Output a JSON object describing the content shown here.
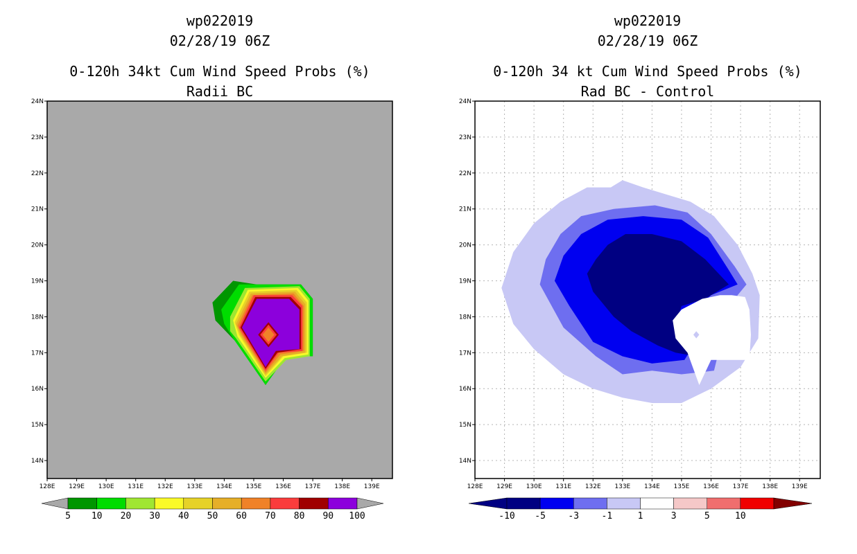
{
  "left_panel": {
    "title_line1": "wp022019",
    "title_line2": "02/28/19 06Z",
    "title_line3": "0-120h 34kt Cum Wind Speed Probs (%)",
    "title_line4": "Radii BC",
    "background_color": "#a9a9a9"
  },
  "right_panel": {
    "title_line1": "wp022019",
    "title_line2": "02/28/19 06Z",
    "title_line3": "0-120h 34 kt Cum Wind Speed Probs (%)",
    "title_line4": "Rad BC - Control"
  },
  "chart_data": [
    {
      "type": "contour-map",
      "title": "0-120h 34kt Cum Wind Speed Probs (%)",
      "subtitle": "Radii BC",
      "xlim": [
        128,
        139.7
      ],
      "ylim": [
        13.5,
        24
      ],
      "x_ticks": [
        128,
        129,
        130,
        131,
        132,
        133,
        134,
        135,
        136,
        137,
        138,
        139
      ],
      "x_tick_labels": [
        "128E",
        "129E",
        "130E",
        "131E",
        "132E",
        "133E",
        "134E",
        "135E",
        "136E",
        "137E",
        "138E",
        "139E"
      ],
      "y_ticks": [
        14,
        15,
        16,
        17,
        18,
        19,
        20,
        21,
        22,
        23,
        24
      ],
      "y_tick_labels": [
        "14N",
        "15N",
        "16N",
        "17N",
        "18N",
        "19N",
        "20N",
        "21N",
        "22N",
        "23N",
        "24N"
      ],
      "grid": false,
      "colorbar": {
        "labels": [
          "5",
          "10",
          "20",
          "30",
          "40",
          "50",
          "60",
          "70",
          "80",
          "90",
          "100"
        ],
        "colors": [
          "#009600",
          "#00dc00",
          "#a0e632",
          "#fafa28",
          "#e6d228",
          "#e6af28",
          "#f08228",
          "#fa3c3c",
          "#a00000",
          "#8c00dc"
        ],
        "end_color": "#a9a9a9"
      },
      "contours": [
        {
          "level": "5-10",
          "color": "#009600",
          "lonlat": [
            [
              133.6,
              18.4
            ],
            [
              134.3,
              19.0
            ],
            [
              135.1,
              18.9
            ],
            [
              136.6,
              18.9
            ],
            [
              137,
              18.5
            ],
            [
              137,
              16.9
            ],
            [
              136.1,
              16.9
            ],
            [
              135.4,
              16.1
            ],
            [
              134.4,
              17.3
            ],
            [
              133.7,
              17.9
            ]
          ]
        },
        {
          "level": "10-20",
          "color": "#00dc00",
          "lonlat": [
            [
              133.9,
              18.2
            ],
            [
              134.5,
              18.9
            ],
            [
              136.6,
              18.9
            ],
            [
              137,
              18.5
            ],
            [
              137,
              16.9
            ],
            [
              136.1,
              16.9
            ],
            [
              135.4,
              16.1
            ],
            [
              134.3,
              17.4
            ],
            [
              134.0,
              17.8
            ]
          ]
        },
        {
          "level": "20-30",
          "color": "#a0e632",
          "lonlat": [
            [
              134.2,
              18.0
            ],
            [
              134.7,
              18.8
            ],
            [
              136.55,
              18.85
            ],
            [
              136.9,
              18.5
            ],
            [
              136.9,
              16.9
            ],
            [
              136.1,
              16.8
            ],
            [
              135.4,
              16.2
            ],
            [
              134.4,
              17.4
            ],
            [
              134.2,
              17.6
            ]
          ]
        },
        {
          "level": "30-40",
          "color": "#fafa28",
          "lonlat": [
            [
              134.3,
              17.9
            ],
            [
              134.8,
              18.75
            ],
            [
              136.5,
              18.8
            ],
            [
              136.85,
              18.45
            ],
            [
              136.85,
              16.95
            ],
            [
              136.05,
              16.85
            ],
            [
              135.4,
              16.3
            ],
            [
              134.45,
              17.45
            ]
          ]
        },
        {
          "level": "40-50",
          "color": "#e6d228",
          "lonlat": [
            [
              134.35,
              17.85
            ],
            [
              134.85,
              18.7
            ],
            [
              136.45,
              18.75
            ],
            [
              136.8,
              18.4
            ],
            [
              136.8,
              17.0
            ],
            [
              136.0,
              16.9
            ],
            [
              135.4,
              16.35
            ],
            [
              134.5,
              17.5
            ]
          ]
        },
        {
          "level": "50-60",
          "color": "#e6af28",
          "lonlat": [
            [
              134.4,
              17.8
            ],
            [
              134.9,
              18.65
            ],
            [
              136.4,
              18.7
            ],
            [
              136.75,
              18.35
            ],
            [
              136.75,
              17.0
            ],
            [
              135.95,
              16.9
            ],
            [
              135.4,
              16.4
            ],
            [
              134.55,
              17.5
            ]
          ]
        },
        {
          "level": "60-70",
          "color": "#f08228",
          "lonlat": [
            [
              134.45,
              17.75
            ],
            [
              134.95,
              18.6
            ],
            [
              136.35,
              18.65
            ],
            [
              136.7,
              18.3
            ],
            [
              136.7,
              17.05
            ],
            [
              135.9,
              16.95
            ],
            [
              135.4,
              16.45
            ],
            [
              134.6,
              17.5
            ]
          ]
        },
        {
          "level": "70-80",
          "color": "#fa3c3c",
          "lonlat": [
            [
              134.5,
              17.7
            ],
            [
              135.0,
              18.6
            ],
            [
              136.3,
              18.6
            ],
            [
              136.65,
              18.3
            ],
            [
              136.65,
              17.05
            ],
            [
              135.85,
              17.0
            ],
            [
              135.4,
              16.5
            ],
            [
              134.65,
              17.5
            ]
          ]
        },
        {
          "level": "80-90",
          "color": "#a00000",
          "lonlat": [
            [
              134.55,
              17.7
            ],
            [
              135.05,
              18.55
            ],
            [
              136.25,
              18.55
            ],
            [
              136.6,
              18.25
            ],
            [
              136.6,
              17.1
            ],
            [
              135.8,
              17.0
            ],
            [
              135.4,
              16.55
            ],
            [
              134.7,
              17.5
            ]
          ]
        },
        {
          "level": "90-100",
          "color": "#8c00dc",
          "lonlat": [
            [
              134.6,
              17.7
            ],
            [
              135.1,
              18.5
            ],
            [
              136.2,
              18.5
            ],
            [
              136.55,
              18.2
            ],
            [
              136.55,
              17.1
            ],
            [
              135.75,
              17.05
            ],
            [
              135.4,
              16.6
            ],
            [
              134.75,
              17.5
            ]
          ]
        },
        {
          "level": "center-80",
          "color": "#a00000",
          "lonlat": [
            [
              135.5,
              17.85
            ],
            [
              135.85,
              17.5
            ],
            [
              135.5,
              17.15
            ],
            [
              135.15,
              17.5
            ]
          ]
        },
        {
          "level": "center-70",
          "color": "#fa3c3c",
          "lonlat": [
            [
              135.5,
              17.78
            ],
            [
              135.78,
              17.5
            ],
            [
              135.5,
              17.22
            ],
            [
              135.22,
              17.5
            ]
          ]
        },
        {
          "level": "center-60",
          "color": "#f08228",
          "lonlat": [
            [
              135.5,
              17.7
            ],
            [
              135.7,
              17.5
            ],
            [
              135.5,
              17.3
            ],
            [
              135.3,
              17.5
            ]
          ]
        }
      ]
    },
    {
      "type": "contour-map",
      "title": "0-120h 34 kt Cum Wind Speed Probs (%)",
      "subtitle": "Rad BC - Control",
      "xlim": [
        128,
        139.7
      ],
      "ylim": [
        13.5,
        24
      ],
      "x_ticks": [
        128,
        129,
        130,
        131,
        132,
        133,
        134,
        135,
        136,
        137,
        138,
        139
      ],
      "x_tick_labels": [
        "128E",
        "129E",
        "130E",
        "131E",
        "132E",
        "133E",
        "134E",
        "135E",
        "136E",
        "137E",
        "138E",
        "139E"
      ],
      "y_ticks": [
        14,
        15,
        16,
        17,
        18,
        19,
        20,
        21,
        22,
        23,
        24
      ],
      "y_tick_labels": [
        "14N",
        "15N",
        "16N",
        "17N",
        "18N",
        "19N",
        "20N",
        "21N",
        "22N",
        "23N",
        "24N"
      ],
      "grid": true,
      "colorbar": {
        "labels": [
          "-10",
          "-5",
          "-3",
          "-1",
          "1",
          "3",
          "5",
          "10"
        ],
        "colors": [
          "#000082",
          "#0000f0",
          "#6e6ef0",
          "#c8c8f5",
          "#ffffff",
          "#f5c8c8",
          "#f06e6e",
          "#f00000"
        ],
        "low_end_color": "#000082",
        "high_end_color": "#820000"
      },
      "contours": [
        {
          "level": "-3 to -1",
          "color": "#c8c8f5",
          "lonlat": [
            [
              133.0,
              21.8
            ],
            [
              133.7,
              21.6
            ],
            [
              134.5,
              21.4
            ],
            [
              135.3,
              21.2
            ],
            [
              136.1,
              20.8
            ],
            [
              136.9,
              20.0
            ],
            [
              137.4,
              19.2
            ],
            [
              137.65,
              18.6
            ],
            [
              137.6,
              17.4
            ],
            [
              137.0,
              16.6
            ],
            [
              136.0,
              16.0
            ],
            [
              135.0,
              15.6
            ],
            [
              134.0,
              15.6
            ],
            [
              133.0,
              15.75
            ],
            [
              132.0,
              16.0
            ],
            [
              131.0,
              16.4
            ],
            [
              130.0,
              17.1
            ],
            [
              129.3,
              17.8
            ],
            [
              128.9,
              18.8
            ],
            [
              129.3,
              19.8
            ],
            [
              130.0,
              20.6
            ],
            [
              130.9,
              21.2
            ],
            [
              131.8,
              21.6
            ],
            [
              132.6,
              21.6
            ]
          ]
        },
        {
          "level": "-5 to -3",
          "color": "#6e6ef0",
          "lonlat": [
            [
              131.6,
              20.8
            ],
            [
              132.7,
              21.0
            ],
            [
              134.1,
              21.1
            ],
            [
              135.2,
              20.9
            ],
            [
              136.0,
              20.3
            ],
            [
              136.8,
              19.4
            ],
            [
              137.2,
              18.9
            ],
            [
              136.9,
              18.6
            ],
            [
              136.4,
              17.5
            ],
            [
              136.1,
              16.5
            ],
            [
              135.0,
              16.4
            ],
            [
              134.0,
              16.5
            ],
            [
              133.0,
              16.4
            ],
            [
              132.1,
              16.9
            ],
            [
              131.0,
              17.7
            ],
            [
              130.2,
              18.9
            ],
            [
              130.4,
              19.6
            ],
            [
              130.9,
              20.3
            ]
          ]
        },
        {
          "level": "-10 to -5",
          "color": "#0000f0",
          "lonlat": [
            [
              131.6,
              20.3
            ],
            [
              132.5,
              20.7
            ],
            [
              133.7,
              20.8
            ],
            [
              135.0,
              20.7
            ],
            [
              135.9,
              20.2
            ],
            [
              136.6,
              19.3
            ],
            [
              136.9,
              18.9
            ],
            [
              136.0,
              18.6
            ],
            [
              135.2,
              18.0
            ],
            [
              135.4,
              17.2
            ],
            [
              135.1,
              16.8
            ],
            [
              134.0,
              16.7
            ],
            [
              133.0,
              16.9
            ],
            [
              132.0,
              17.3
            ],
            [
              131.2,
              18.3
            ],
            [
              130.7,
              19.0
            ],
            [
              131.0,
              19.7
            ]
          ]
        },
        {
          "level": "< -10",
          "color": "#000082",
          "lonlat": [
            [
              132.5,
              20.0
            ],
            [
              133.1,
              20.3
            ],
            [
              134.0,
              20.3
            ],
            [
              135.0,
              20.1
            ],
            [
              135.8,
              19.6
            ],
            [
              136.6,
              18.9
            ],
            [
              135.8,
              18.5
            ],
            [
              135.0,
              18.3
            ],
            [
              134.8,
              17.8
            ],
            [
              135.1,
              17.1
            ],
            [
              135.5,
              16.9
            ],
            [
              134.8,
              17.0
            ],
            [
              134.2,
              17.2
            ],
            [
              133.3,
              17.6
            ],
            [
              132.7,
              18.0
            ],
            [
              132.0,
              18.7
            ],
            [
              131.8,
              19.2
            ],
            [
              132.1,
              19.6
            ]
          ]
        },
        {
          "level": "-1 to 1",
          "color": "#ffffff",
          "lonlat": [
            [
              135.7,
              18.5
            ],
            [
              136.3,
              18.6
            ],
            [
              136.7,
              18.6
            ],
            [
              137.15,
              18.55
            ],
            [
              137.3,
              18.2
            ],
            [
              137.35,
              17.5
            ],
            [
              137.3,
              16.8
            ],
            [
              136.9,
              16.8
            ],
            [
              136.0,
              16.8
            ],
            [
              135.6,
              16.1
            ],
            [
              135.2,
              17.0
            ],
            [
              134.8,
              17.4
            ],
            [
              134.7,
              17.9
            ],
            [
              135.0,
              18.2
            ]
          ]
        },
        {
          "level": "-3 to -1 (spot)",
          "color": "#c8c8f5",
          "lonlat": [
            [
              135.5,
              17.6
            ],
            [
              135.6,
              17.5
            ],
            [
              135.5,
              17.4
            ],
            [
              135.4,
              17.5
            ]
          ]
        }
      ]
    }
  ]
}
